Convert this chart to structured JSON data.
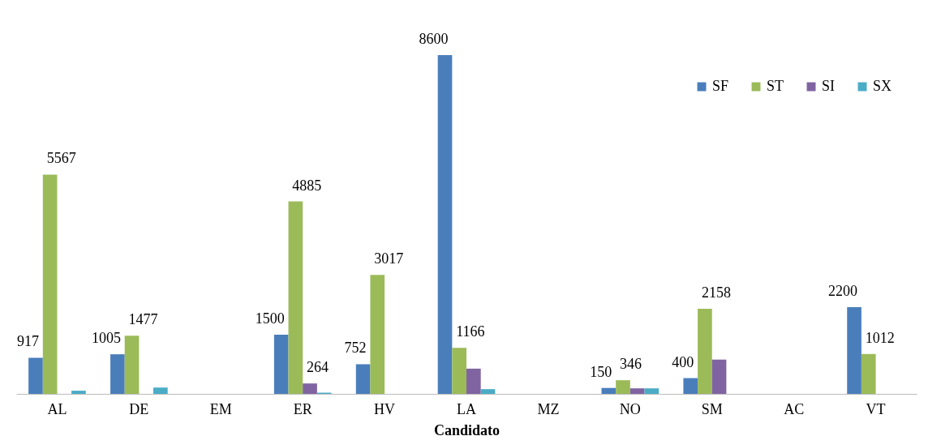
{
  "chart_data": {
    "type": "bar",
    "xlabel": "Candidato",
    "categories": [
      "AL",
      "DE",
      "EM",
      "ER",
      "HV",
      "LA",
      "MZ",
      "NO",
      "SM",
      "AC",
      "VT"
    ],
    "legend": "top right",
    "series": [
      {
        "name": "SF",
        "color": "#4a7ebb",
        "values": [
          917,
          1005,
          null,
          1500,
          752,
          8600,
          null,
          150,
          400,
          null,
          2200
        ],
        "value_labels": [
          "917",
          "1005",
          null,
          "1500",
          "752",
          "8600",
          null,
          "150",
          "400",
          null,
          "2200"
        ]
      },
      {
        "name": "ST",
        "color": "#9bbb59",
        "values": [
          5567,
          1477,
          null,
          4885,
          3017,
          1166,
          null,
          346,
          2158,
          null,
          1012
        ],
        "value_labels": [
          "5567",
          "1477",
          null,
          "4885",
          "3017",
          "1166",
          null,
          "346",
          "2158",
          null,
          "1012"
        ]
      },
      {
        "name": "SI",
        "color": "#8064a2",
        "values": [
          null,
          null,
          null,
          264,
          null,
          640,
          null,
          140,
          870,
          null,
          null
        ],
        "value_labels": [
          null,
          null,
          null,
          "264",
          null,
          null,
          null,
          null,
          null,
          null,
          null
        ]
      },
      {
        "name": "SX",
        "color": "#4bacc6",
        "values": [
          80,
          160,
          null,
          30,
          null,
          120,
          null,
          140,
          null,
          null,
          null
        ],
        "value_labels": [
          null,
          null,
          null,
          null,
          null,
          null,
          null,
          null,
          null,
          null,
          null
        ]
      }
    ]
  }
}
